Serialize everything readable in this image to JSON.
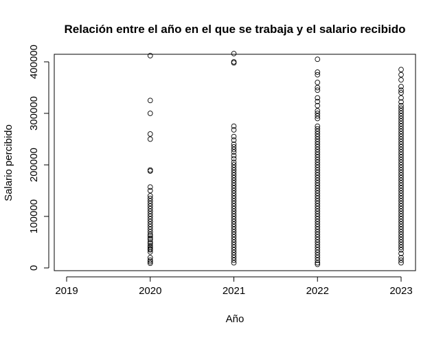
{
  "chart_data": {
    "type": "scatter",
    "title": "Relación entre el año en el que se trabaja y el salario recibido",
    "xlabel": "Año",
    "ylabel": "Salario percibido",
    "xlim": [
      2019,
      2023
    ],
    "ylim": [
      0,
      400000
    ],
    "x_ticks": [
      "2019",
      "2020",
      "2021",
      "2022",
      "2023"
    ],
    "y_ticks": [
      "0",
      "100000",
      "200000",
      "300000",
      "400000"
    ],
    "grid": false,
    "legend": "none",
    "point_color": "#000000",
    "series": [
      {
        "x": 2020,
        "values": [
          412000,
          325000,
          300000,
          260000,
          250000,
          190000,
          188000,
          157000,
          150000,
          140000,
          135000,
          130000,
          125000,
          120000,
          115000,
          110000,
          105000,
          100000,
          95000,
          90000,
          85000,
          80000,
          75000,
          70000,
          65000,
          62000,
          58000,
          55000,
          50000,
          47000,
          43000,
          40000,
          37000,
          35000,
          31000,
          20000,
          15000,
          12000,
          9000
        ]
      },
      {
        "x": 2021,
        "values": [
          416000,
          400000,
          398000,
          275000,
          268000,
          255000,
          248000,
          240000,
          235000,
          230000,
          225000,
          218000,
          212000,
          205000,
          200000,
          195000,
          190000,
          185000,
          180000,
          175000,
          170000,
          165000,
          160000,
          155000,
          150000,
          145000,
          140000,
          135000,
          130000,
          125000,
          120000,
          115000,
          110000,
          105000,
          100000,
          95000,
          90000,
          85000,
          80000,
          75000,
          70000,
          65000,
          60000,
          55000,
          50000,
          45000,
          40000,
          35000,
          30000,
          25000,
          20000,
          15000,
          10000
        ]
      },
      {
        "x": 2022,
        "values": [
          405000,
          380000,
          375000,
          360000,
          350000,
          345000,
          330000,
          323000,
          315000,
          305000,
          300000,
          295000,
          290000,
          275000,
          270000,
          265000,
          260000,
          255000,
          250000,
          245000,
          240000,
          235000,
          230000,
          225000,
          220000,
          215000,
          210000,
          205000,
          200000,
          195000,
          190000,
          185000,
          180000,
          175000,
          170000,
          165000,
          160000,
          155000,
          150000,
          145000,
          140000,
          135000,
          130000,
          125000,
          120000,
          115000,
          110000,
          105000,
          100000,
          95000,
          90000,
          85000,
          80000,
          75000,
          70000,
          65000,
          60000,
          55000,
          50000,
          45000,
          40000,
          35000,
          30000,
          25000,
          20000,
          15000,
          10000,
          7000
        ]
      },
      {
        "x": 2023,
        "values": [
          385000,
          375000,
          365000,
          352000,
          345000,
          340000,
          330000,
          322000,
          315000,
          310000,
          305000,
          300000,
          295000,
          290000,
          285000,
          280000,
          275000,
          270000,
          265000,
          260000,
          255000,
          250000,
          245000,
          240000,
          235000,
          230000,
          225000,
          220000,
          215000,
          210000,
          205000,
          200000,
          195000,
          190000,
          185000,
          180000,
          175000,
          170000,
          165000,
          160000,
          155000,
          150000,
          145000,
          140000,
          135000,
          130000,
          125000,
          120000,
          115000,
          110000,
          105000,
          100000,
          95000,
          90000,
          85000,
          80000,
          75000,
          70000,
          65000,
          60000,
          55000,
          50000,
          45000,
          40000,
          35000,
          28000,
          20000,
          15000,
          10000
        ]
      }
    ]
  }
}
